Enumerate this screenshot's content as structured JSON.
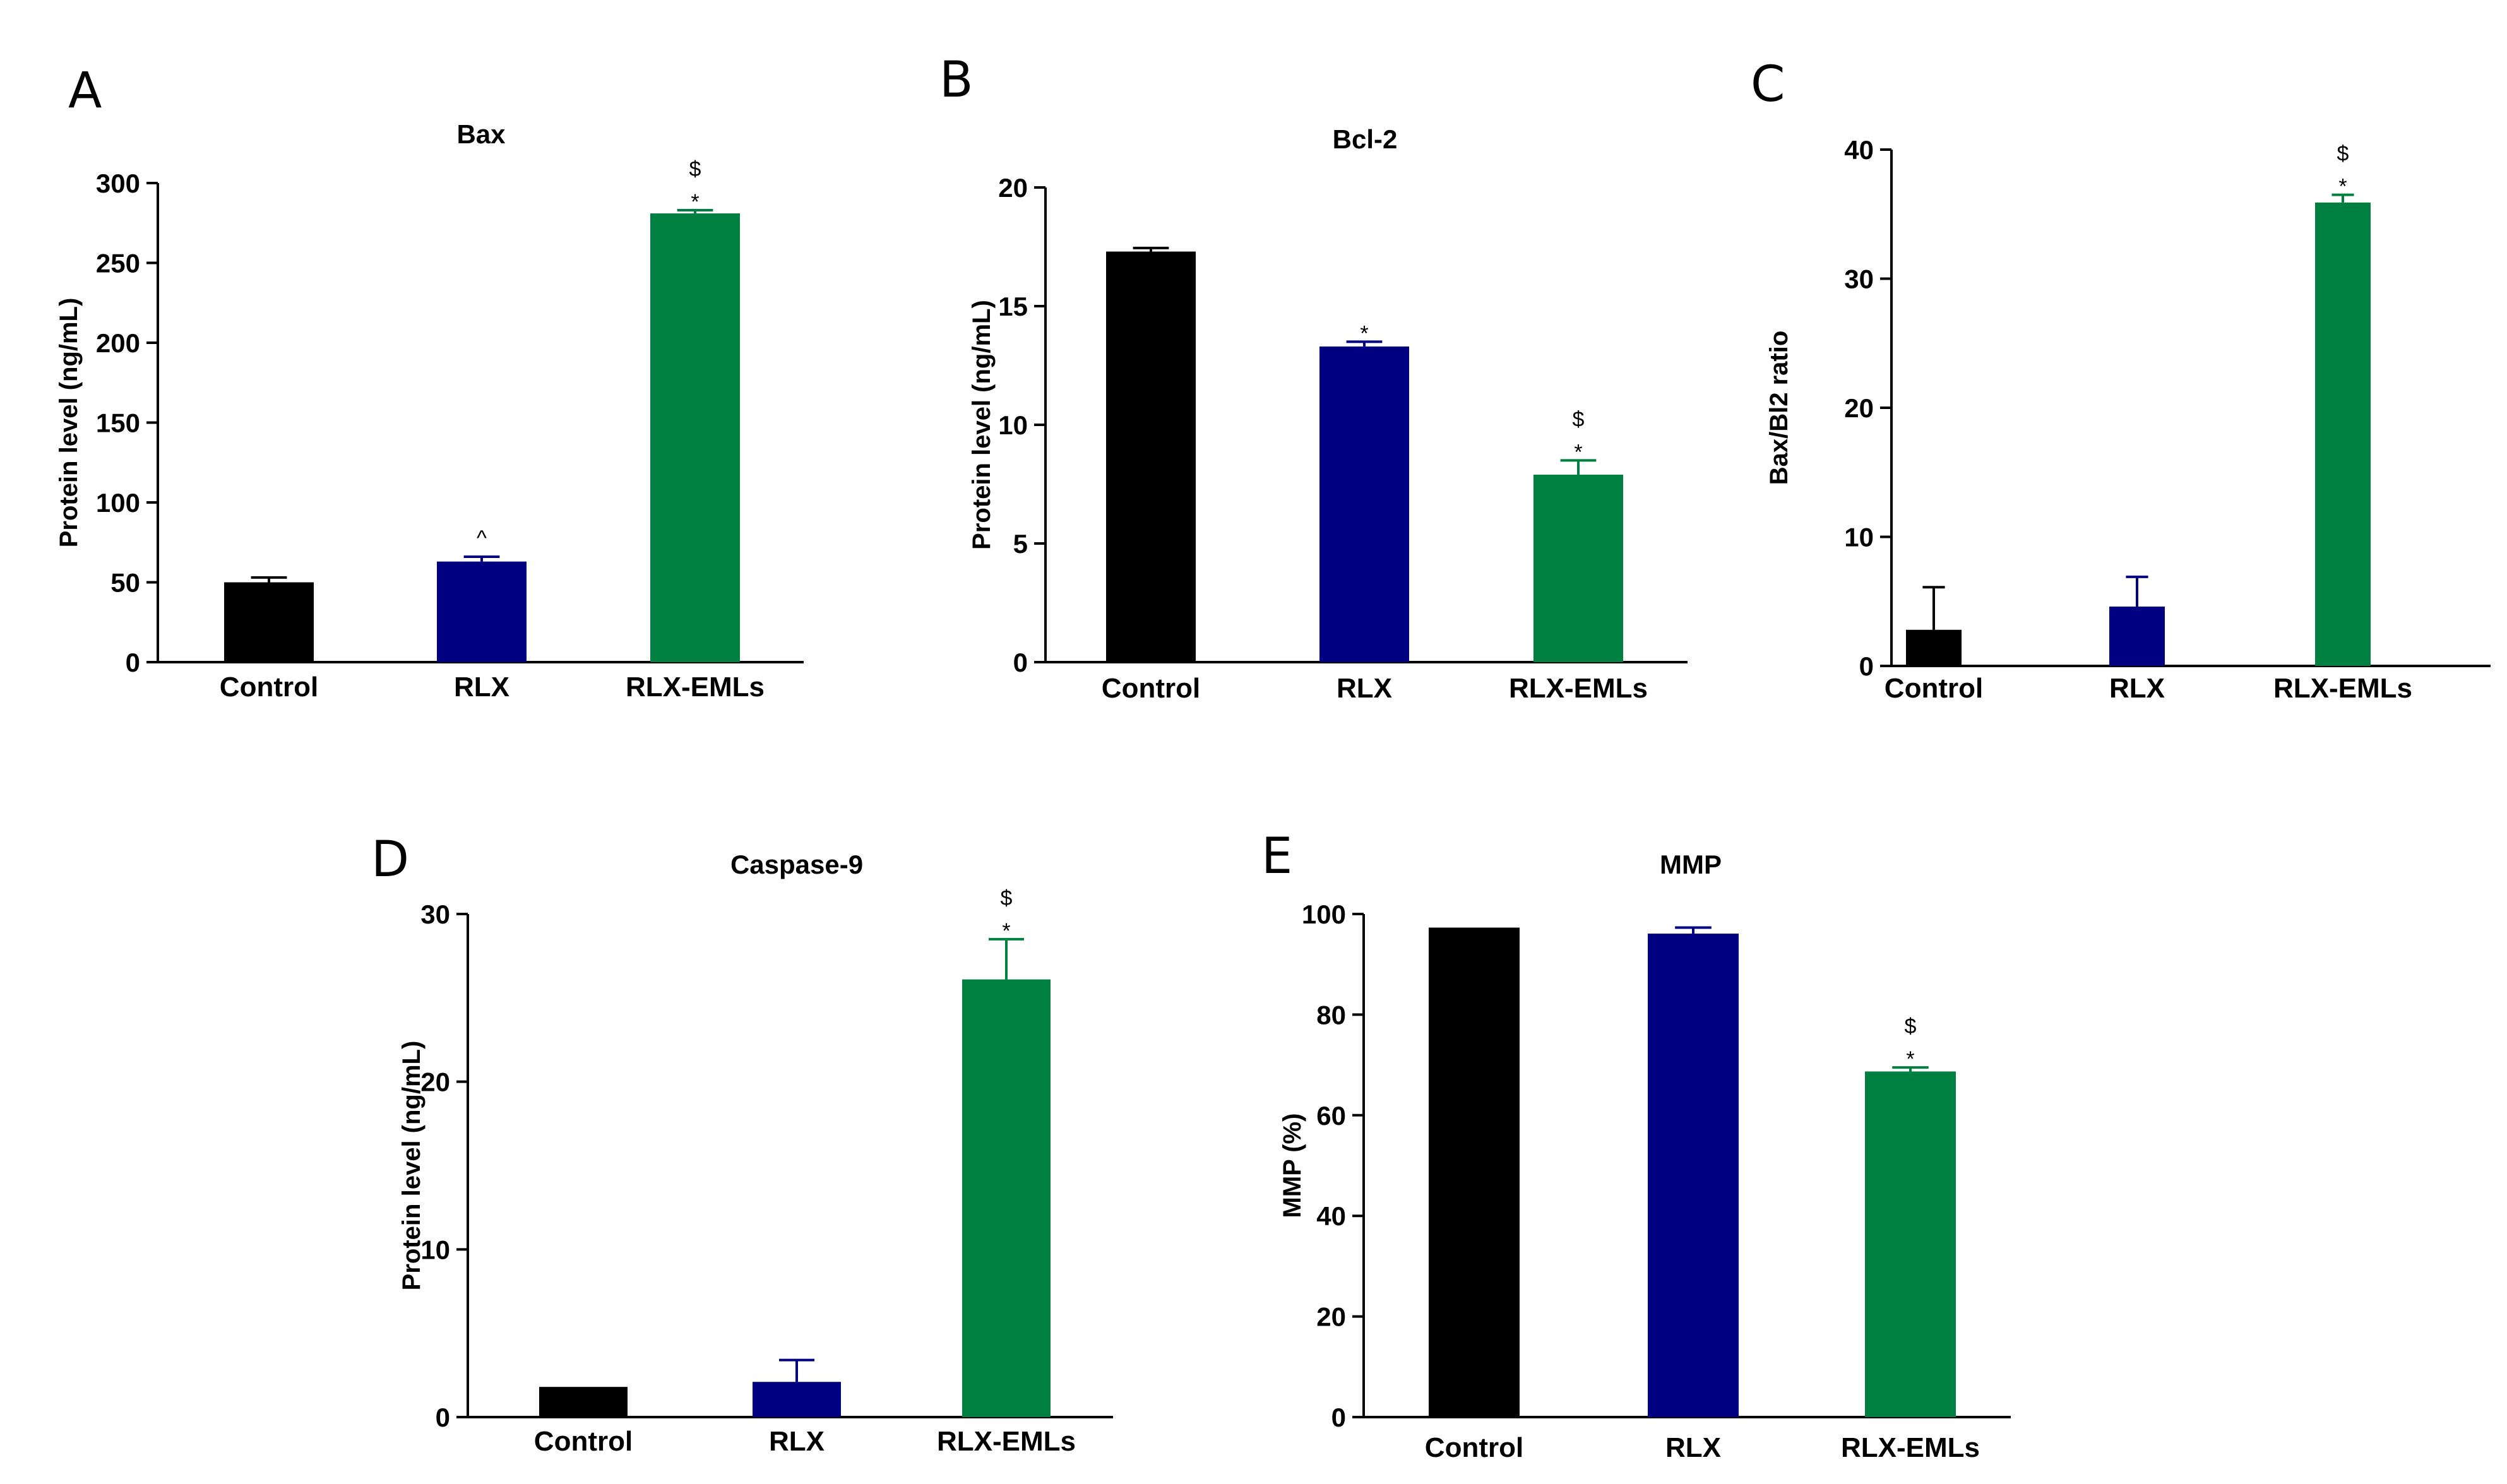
{
  "colors": {
    "Control": "#000000",
    "RLX": "#000080",
    "RLX-EMLs": "#008040"
  },
  "chart_data": [
    {
      "panel": "A",
      "type": "bar",
      "title": "Bax",
      "ylabel": "Protein level (ng/mL)",
      "xlabel": "",
      "ylim": [
        0,
        300
      ],
      "yticks": [
        "0",
        "50",
        "100",
        "150",
        "200",
        "250",
        "300"
      ],
      "categories": [
        "Control",
        "RLX",
        "RLX-EMLs"
      ],
      "values": [
        50,
        63,
        281
      ],
      "errors": [
        3,
        3,
        2
      ],
      "annotations": [
        [],
        [
          "^"
        ],
        [
          "*",
          "$"
        ]
      ]
    },
    {
      "panel": "B",
      "type": "bar",
      "title": "Bcl-2",
      "ylabel": "Protein level (ng/mL)",
      "xlabel": "",
      "ylim": [
        0,
        20
      ],
      "yticks": [
        "0",
        "5",
        "10",
        "15",
        "20"
      ],
      "categories": [
        "Control",
        "RLX",
        "RLX-EMLs"
      ],
      "values": [
        17.3,
        13.3,
        7.9
      ],
      "errors": [
        0.15,
        0.2,
        0.6
      ],
      "annotations": [
        [],
        [
          "*"
        ],
        [
          "*",
          "$"
        ]
      ]
    },
    {
      "panel": "C",
      "type": "bar",
      "title": "",
      "ylabel": "Bax/Bl2 ratio",
      "xlabel": "",
      "ylim": [
        0,
        40
      ],
      "yticks": [
        "0",
        "10",
        "20",
        "30",
        "40"
      ],
      "categories": [
        "Control",
        "RLX",
        "RLX-EMLs"
      ],
      "values": [
        2.8,
        4.6,
        35.9
      ],
      "errors": [
        3.3,
        2.3,
        0.6
      ],
      "annotations": [
        [],
        [],
        [
          "*",
          "$"
        ]
      ]
    },
    {
      "panel": "D",
      "type": "bar",
      "title": "Caspase-9",
      "ylabel": "Protein level (ng/mL)",
      "xlabel": "",
      "ylim": [
        0,
        30
      ],
      "yticks": [
        "0",
        "10",
        "20",
        "30"
      ],
      "categories": [
        "Control",
        "RLX",
        "RLX-EMLs"
      ],
      "values": [
        1.8,
        2.1,
        26.1
      ],
      "errors": [
        0,
        1.3,
        2.4
      ],
      "annotations": [
        [],
        [],
        [
          "*",
          "$"
        ]
      ]
    },
    {
      "panel": "E",
      "type": "bar",
      "title": "MMP",
      "ylabel": "MMP (%)",
      "xlabel": "",
      "ylim": [
        0,
        100
      ],
      "yticks": [
        "0",
        "20",
        "40",
        "60",
        "80",
        "100"
      ],
      "categories": [
        "Control",
        "RLX",
        "RLX-EMLs"
      ],
      "values": [
        97.3,
        96.1,
        68.7
      ],
      "errors": [
        0,
        1.2,
        0.8
      ],
      "annotations": [
        [],
        [],
        [
          "*",
          "$"
        ]
      ]
    }
  ]
}
